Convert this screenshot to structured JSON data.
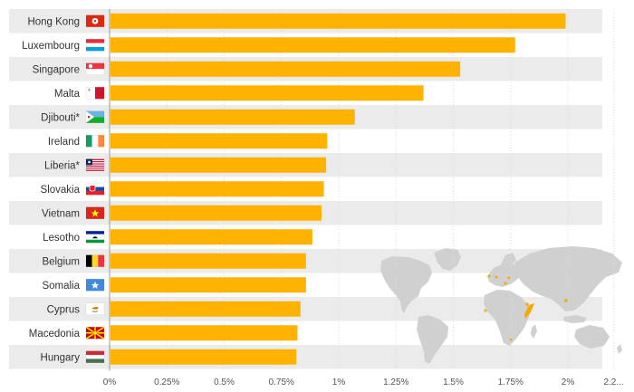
{
  "chart_data": {
    "type": "bar",
    "orientation": "horizontal",
    "categories": [
      "Hong Kong",
      "Luxembourg",
      "Singapore",
      "Malta",
      "Djibouti*",
      "Ireland",
      "Liberia*",
      "Slovakia",
      "Vietnam",
      "Lesotho",
      "Belgium",
      "Somalia",
      "Cyprus",
      "Macedonia",
      "Hungary"
    ],
    "values": [
      1.99,
      1.77,
      1.53,
      1.37,
      1.07,
      0.95,
      0.945,
      0.935,
      0.925,
      0.885,
      0.857,
      0.857,
      0.833,
      0.82,
      0.815
    ],
    "xlim": [
      0,
      2.2
    ],
    "x_ticks": [
      "0%",
      "0.25%",
      "0.5%",
      "0.75%",
      "1%",
      "1.25%",
      "1.5%",
      "1.75%",
      "2%",
      "2.2..."
    ],
    "x_tick_values": [
      0,
      0.25,
      0.5,
      0.75,
      1,
      1.25,
      1.5,
      1.75,
      2,
      2.2
    ],
    "bar_color": "#FFB300",
    "row_band_color": "#EBEBEB",
    "map_color": "#D0D0D0",
    "flag_icons": [
      "hong-kong-flag-icon",
      "luxembourg-flag-icon",
      "singapore-flag-icon",
      "malta-flag-icon",
      "djibouti-flag-icon",
      "ireland-flag-icon",
      "liberia-flag-icon",
      "slovakia-flag-icon",
      "vietnam-flag-icon",
      "lesotho-flag-icon",
      "belgium-flag-icon",
      "somalia-flag-icon",
      "cyprus-flag-icon",
      "macedonia-flag-icon",
      "hungary-flag-icon"
    ],
    "grid": true
  }
}
